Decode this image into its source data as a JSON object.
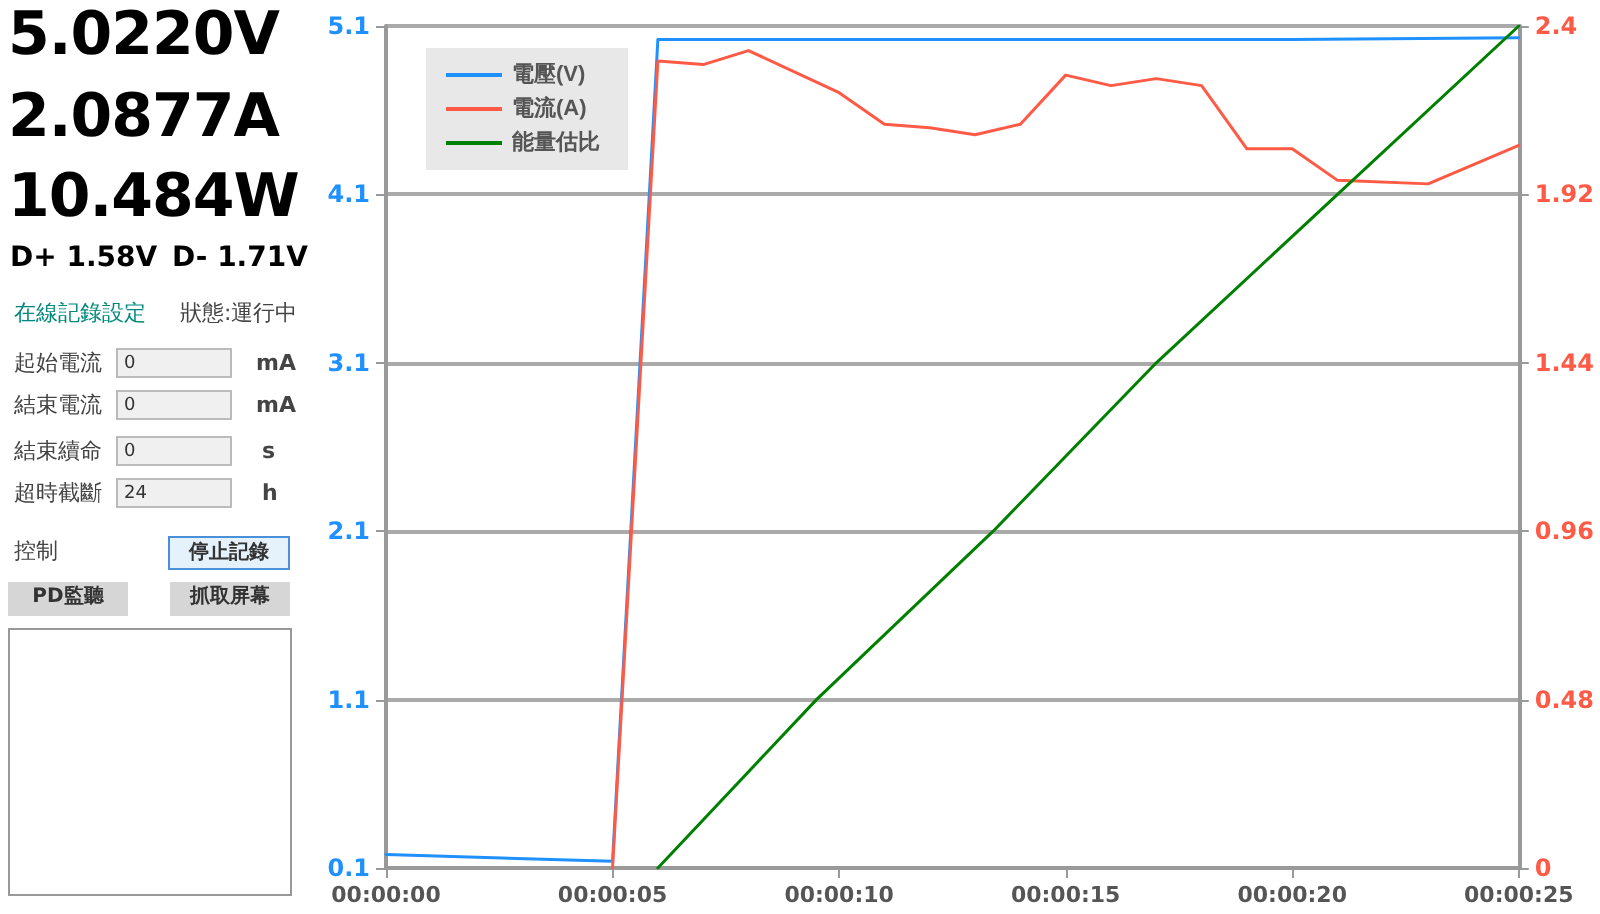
{
  "chart_data": [
    {
      "type": "other",
      "annotations": [
        "5.0220V",
        "2.0877A",
        "10.484W",
        "D+ 1.58V",
        "D- 1.71V",
        "在線記錄設定",
        "狀態:運行中",
        "起始電流",
        "0",
        "mA",
        "結束電流",
        "0",
        "mA",
        "結束續命",
        "0",
        "s",
        "超時截斷",
        "24",
        "h",
        "控制",
        "停止記錄",
        "PD監聽",
        "抓取屏幕"
      ]
    },
    {
      "type": "line",
      "series": [
        {
          "name": "電壓(V)",
          "color": "#1e90ff",
          "x": [
            0,
            5,
            6,
            10,
            15,
            20,
            25
          ],
          "values": [
            0.18,
            0.14,
            5.02,
            5.02,
            5.02,
            5.02,
            5.03
          ]
        },
        {
          "name": "電流(A)",
          "color": "#ff5a45",
          "axis": "y2",
          "x": [
            5,
            6,
            7,
            8,
            10,
            11,
            12,
            13,
            14,
            15,
            16,
            17,
            18,
            19,
            20,
            21,
            23,
            25
          ],
          "values": [
            0,
            2.3,
            2.29,
            2.33,
            2.21,
            2.12,
            2.11,
            2.09,
            2.12,
            2.26,
            2.23,
            2.25,
            2.23,
            2.05,
            2.05,
            1.96,
            1.95,
            2.06
          ]
        },
        {
          "name": "能量估比",
          "color": "#008000",
          "axis": "y2",
          "x": [
            6,
            9.5,
            13.4,
            17,
            21,
            25
          ],
          "values": [
            0,
            0.48,
            0.96,
            1.44,
            1.92,
            2.4
          ]
        }
      ],
      "xlim": [
        0,
        25
      ],
      "xticks": [
        {
          "value": 0,
          "label": "00:00:00"
        },
        {
          "value": 5,
          "label": "00:00:05"
        },
        {
          "value": 10,
          "label": "00:00:10"
        },
        {
          "value": 15,
          "label": "00:00:15"
        },
        {
          "value": 20,
          "label": "00:00:20"
        },
        {
          "value": 25,
          "label": "00:00:25"
        }
      ],
      "ylim": [
        0.1,
        5.1
      ],
      "yticks": [
        0.1,
        1.1,
        2.1,
        3.1,
        4.1,
        5.1
      ],
      "y2lim": [
        0,
        2.4
      ],
      "y2ticks": [
        0,
        0.48,
        0.96,
        1.44,
        1.92,
        2.4
      ],
      "grid": "y",
      "legend": "top left",
      "marker": "none",
      "line_style": "solid"
    }
  ]
}
